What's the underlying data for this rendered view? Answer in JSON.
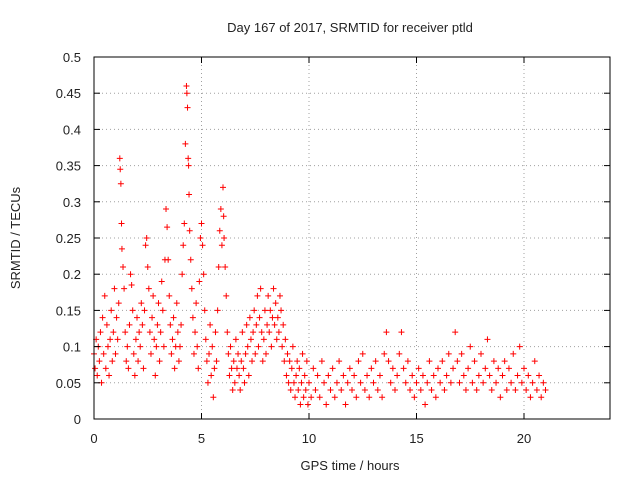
{
  "chart_data": {
    "type": "scatter",
    "title": "Day 167 of 2017, SRMTID for receiver ptld",
    "xlabel": "GPS time / hours",
    "ylabel": "SRMTID / TECUs",
    "xlim": [
      0,
      24
    ],
    "ylim": [
      0,
      0.5
    ],
    "x_ticks": [
      0,
      5,
      10,
      15,
      20
    ],
    "x_tick_labels": [
      "0",
      "5",
      "10",
      "15",
      "20"
    ],
    "y_ticks": [
      0,
      0.05,
      0.1,
      0.15,
      0.2,
      0.25,
      0.3,
      0.35,
      0.4,
      0.45,
      0.5
    ],
    "y_tick_labels": [
      "0",
      "0.05",
      "0.1",
      "0.15",
      "0.2",
      "0.25",
      "0.3",
      "0.35",
      "0.4",
      "0.45",
      "0.5"
    ],
    "grid": true,
    "marker": "plus",
    "color": "#ff0000",
    "series": [
      {
        "points": [
          [
            0.0,
            0.09
          ],
          [
            0.05,
            0.07
          ],
          [
            0.1,
            0.11
          ],
          [
            0.15,
            0.06
          ],
          [
            0.2,
            0.1
          ],
          [
            0.25,
            0.08
          ],
          [
            0.3,
            0.12
          ],
          [
            0.35,
            0.05
          ],
          [
            0.4,
            0.14
          ],
          [
            0.45,
            0.09
          ],
          [
            0.5,
            0.17
          ],
          [
            0.55,
            0.07
          ],
          [
            0.6,
            0.13
          ],
          [
            0.65,
            0.1
          ],
          [
            0.7,
            0.06
          ],
          [
            0.75,
            0.11
          ],
          [
            0.8,
            0.15
          ],
          [
            0.85,
            0.08
          ],
          [
            0.9,
            0.12
          ],
          [
            0.95,
            0.18
          ],
          [
            1.0,
            0.09
          ],
          [
            1.05,
            0.14
          ],
          [
            1.1,
            0.11
          ],
          [
            1.15,
            0.16
          ],
          [
            1.2,
            0.36
          ],
          [
            1.22,
            0.345
          ],
          [
            1.25,
            0.325
          ],
          [
            1.28,
            0.27
          ],
          [
            1.3,
            0.235
          ],
          [
            1.35,
            0.21
          ],
          [
            1.4,
            0.18
          ],
          [
            1.45,
            0.12
          ],
          [
            1.5,
            0.08
          ],
          [
            1.55,
            0.1
          ],
          [
            1.6,
            0.07
          ],
          [
            1.65,
            0.13
          ],
          [
            1.7,
            0.2
          ],
          [
            1.75,
            0.185
          ],
          [
            1.8,
            0.15
          ],
          [
            1.85,
            0.09
          ],
          [
            1.9,
            0.06
          ],
          [
            1.95,
            0.11
          ],
          [
            2.0,
            0.14
          ],
          [
            2.05,
            0.08
          ],
          [
            2.1,
            0.12
          ],
          [
            2.15,
            0.1
          ],
          [
            2.2,
            0.16
          ],
          [
            2.25,
            0.13
          ],
          [
            2.3,
            0.07
          ],
          [
            2.35,
            0.15
          ],
          [
            2.4,
            0.24
          ],
          [
            2.45,
            0.25
          ],
          [
            2.5,
            0.21
          ],
          [
            2.55,
            0.18
          ],
          [
            2.6,
            0.12
          ],
          [
            2.65,
            0.09
          ],
          [
            2.7,
            0.14
          ],
          [
            2.75,
            0.17
          ],
          [
            2.8,
            0.11
          ],
          [
            2.85,
            0.06
          ],
          [
            2.9,
            0.1
          ],
          [
            2.95,
            0.13
          ],
          [
            3.0,
            0.16
          ],
          [
            3.05,
            0.08
          ],
          [
            3.1,
            0.12
          ],
          [
            3.15,
            0.19
          ],
          [
            3.2,
            0.15
          ],
          [
            3.25,
            0.1
          ],
          [
            3.3,
            0.22
          ],
          [
            3.35,
            0.29
          ],
          [
            3.4,
            0.265
          ],
          [
            3.45,
            0.22
          ],
          [
            3.5,
            0.17
          ],
          [
            3.55,
            0.13
          ],
          [
            3.6,
            0.09
          ],
          [
            3.65,
            0.11
          ],
          [
            3.7,
            0.14
          ],
          [
            3.75,
            0.07
          ],
          [
            3.8,
            0.1
          ],
          [
            3.85,
            0.16
          ],
          [
            3.9,
            0.12
          ],
          [
            3.95,
            0.08
          ],
          [
            4.0,
            0.1
          ],
          [
            4.05,
            0.13
          ],
          [
            4.1,
            0.2
          ],
          [
            4.15,
            0.24
          ],
          [
            4.2,
            0.27
          ],
          [
            4.25,
            0.38
          ],
          [
            4.3,
            0.46
          ],
          [
            4.32,
            0.45
          ],
          [
            4.35,
            0.43
          ],
          [
            4.38,
            0.36
          ],
          [
            4.4,
            0.35
          ],
          [
            4.42,
            0.31
          ],
          [
            4.45,
            0.26
          ],
          [
            4.5,
            0.22
          ],
          [
            4.55,
            0.18
          ],
          [
            4.6,
            0.14
          ],
          [
            4.65,
            0.09
          ],
          [
            4.7,
            0.12
          ],
          [
            4.75,
            0.16
          ],
          [
            4.8,
            0.1
          ],
          [
            4.85,
            0.07
          ],
          [
            4.9,
            0.19
          ],
          [
            4.95,
            0.25
          ],
          [
            5.0,
            0.27
          ],
          [
            5.05,
            0.24
          ],
          [
            5.1,
            0.2
          ],
          [
            5.15,
            0.15
          ],
          [
            5.2,
            0.11
          ],
          [
            5.25,
            0.08
          ],
          [
            5.3,
            0.05
          ],
          [
            5.35,
            0.09
          ],
          [
            5.4,
            0.13
          ],
          [
            5.45,
            0.06
          ],
          [
            5.5,
            0.1
          ],
          [
            5.55,
            0.03
          ],
          [
            5.6,
            0.07
          ],
          [
            5.65,
            0.12
          ],
          [
            5.7,
            0.08
          ],
          [
            5.75,
            0.15
          ],
          [
            5.8,
            0.21
          ],
          [
            5.85,
            0.26
          ],
          [
            5.9,
            0.29
          ],
          [
            5.95,
            0.24
          ],
          [
            6.0,
            0.32
          ],
          [
            6.03,
            0.28
          ],
          [
            6.05,
            0.25
          ],
          [
            6.1,
            0.21
          ],
          [
            6.15,
            0.17
          ],
          [
            6.2,
            0.12
          ],
          [
            6.25,
            0.09
          ],
          [
            6.3,
            0.06
          ],
          [
            6.35,
            0.1
          ],
          [
            6.4,
            0.07
          ],
          [
            6.45,
            0.04
          ],
          [
            6.5,
            0.08
          ],
          [
            6.55,
            0.05
          ],
          [
            6.6,
            0.11
          ],
          [
            6.65,
            0.07
          ],
          [
            6.7,
            0.09
          ],
          [
            6.75,
            0.06
          ],
          [
            6.8,
            0.04
          ],
          [
            6.85,
            0.08
          ],
          [
            6.9,
            0.12
          ],
          [
            6.95,
            0.07
          ],
          [
            7.0,
            0.05
          ],
          [
            7.05,
            0.09
          ],
          [
            7.1,
            0.13
          ],
          [
            7.15,
            0.1
          ],
          [
            7.2,
            0.06
          ],
          [
            7.25,
            0.14
          ],
          [
            7.3,
            0.11
          ],
          [
            7.35,
            0.08
          ],
          [
            7.4,
            0.12
          ],
          [
            7.45,
            0.15
          ],
          [
            7.5,
            0.09
          ],
          [
            7.55,
            0.13
          ],
          [
            7.6,
            0.17
          ],
          [
            7.65,
            0.1
          ],
          [
            7.7,
            0.14
          ],
          [
            7.75,
            0.18
          ],
          [
            7.8,
            0.12
          ],
          [
            7.85,
            0.08
          ],
          [
            7.9,
            0.11
          ],
          [
            7.95,
            0.15
          ],
          [
            8.0,
            0.09
          ],
          [
            8.05,
            0.13
          ],
          [
            8.1,
            0.17
          ],
          [
            8.15,
            0.12
          ],
          [
            8.2,
            0.15
          ],
          [
            8.25,
            0.1
          ],
          [
            8.3,
            0.14
          ],
          [
            8.35,
            0.18
          ],
          [
            8.4,
            0.13
          ],
          [
            8.45,
            0.16
          ],
          [
            8.5,
            0.11
          ],
          [
            8.55,
            0.14
          ],
          [
            8.6,
            0.12
          ],
          [
            8.65,
            0.17
          ],
          [
            8.7,
            0.15
          ],
          [
            8.75,
            0.1
          ],
          [
            8.8,
            0.13
          ],
          [
            8.85,
            0.08
          ],
          [
            8.9,
            0.11
          ],
          [
            8.95,
            0.06
          ],
          [
            9.0,
            0.09
          ],
          [
            9.05,
            0.05
          ],
          [
            9.1,
            0.08
          ],
          [
            9.15,
            0.04
          ],
          [
            9.2,
            0.07
          ],
          [
            9.25,
            0.1
          ],
          [
            9.3,
            0.05
          ],
          [
            9.35,
            0.03
          ],
          [
            9.4,
            0.06
          ],
          [
            9.45,
            0.08
          ],
          [
            9.5,
            0.04
          ],
          [
            9.55,
            0.07
          ],
          [
            9.6,
            0.02
          ],
          [
            9.65,
            0.05
          ],
          [
            9.7,
            0.09
          ],
          [
            9.75,
            0.03
          ],
          [
            9.8,
            0.06
          ],
          [
            9.85,
            0.04
          ],
          [
            9.9,
            0.08
          ],
          [
            9.95,
            0.02
          ],
          [
            10.0,
            0.05
          ],
          [
            10.1,
            0.03
          ],
          [
            10.2,
            0.07
          ],
          [
            10.3,
            0.04
          ],
          [
            10.4,
            0.06
          ],
          [
            10.5,
            0.03
          ],
          [
            10.6,
            0.08
          ],
          [
            10.7,
            0.05
          ],
          [
            10.8,
            0.02
          ],
          [
            10.9,
            0.06
          ],
          [
            11.0,
            0.04
          ],
          [
            11.1,
            0.07
          ],
          [
            11.2,
            0.03
          ],
          [
            11.3,
            0.05
          ],
          [
            11.4,
            0.08
          ],
          [
            11.5,
            0.04
          ],
          [
            11.6,
            0.06
          ],
          [
            11.7,
            0.02
          ],
          [
            11.8,
            0.05
          ],
          [
            11.9,
            0.07
          ],
          [
            12.0,
            0.04
          ],
          [
            12.1,
            0.06
          ],
          [
            12.2,
            0.03
          ],
          [
            12.3,
            0.08
          ],
          [
            12.4,
            0.05
          ],
          [
            12.5,
            0.09
          ],
          [
            12.6,
            0.04
          ],
          [
            12.7,
            0.06
          ],
          [
            12.8,
            0.03
          ],
          [
            12.9,
            0.07
          ],
          [
            13.0,
            0.05
          ],
          [
            13.1,
            0.08
          ],
          [
            13.2,
            0.04
          ],
          [
            13.3,
            0.06
          ],
          [
            13.4,
            0.03
          ],
          [
            13.5,
            0.09
          ],
          [
            13.6,
            0.12
          ],
          [
            13.7,
            0.08
          ],
          [
            13.8,
            0.05
          ],
          [
            13.9,
            0.07
          ],
          [
            14.0,
            0.04
          ],
          [
            14.1,
            0.06
          ],
          [
            14.2,
            0.09
          ],
          [
            14.3,
            0.12
          ],
          [
            14.4,
            0.07
          ],
          [
            14.5,
            0.05
          ],
          [
            14.6,
            0.08
          ],
          [
            14.7,
            0.04
          ],
          [
            14.8,
            0.06
          ],
          [
            14.9,
            0.03
          ],
          [
            15.0,
            0.05
          ],
          [
            15.1,
            0.07
          ],
          [
            15.2,
            0.04
          ],
          [
            15.3,
            0.06
          ],
          [
            15.4,
            0.02
          ],
          [
            15.5,
            0.05
          ],
          [
            15.6,
            0.08
          ],
          [
            15.7,
            0.04
          ],
          [
            15.8,
            0.06
          ],
          [
            15.9,
            0.03
          ],
          [
            16.0,
            0.07
          ],
          [
            16.1,
            0.05
          ],
          [
            16.2,
            0.08
          ],
          [
            16.3,
            0.04
          ],
          [
            16.4,
            0.06
          ],
          [
            16.5,
            0.09
          ],
          [
            16.6,
            0.05
          ],
          [
            16.7,
            0.07
          ],
          [
            16.8,
            0.12
          ],
          [
            16.9,
            0.08
          ],
          [
            17.0,
            0.05
          ],
          [
            17.1,
            0.09
          ],
          [
            17.2,
            0.06
          ],
          [
            17.3,
            0.04
          ],
          [
            17.4,
            0.07
          ],
          [
            17.5,
            0.1
          ],
          [
            17.6,
            0.05
          ],
          [
            17.7,
            0.08
          ],
          [
            17.8,
            0.04
          ],
          [
            17.9,
            0.06
          ],
          [
            18.0,
            0.09
          ],
          [
            18.1,
            0.05
          ],
          [
            18.2,
            0.07
          ],
          [
            18.3,
            0.11
          ],
          [
            18.4,
            0.06
          ],
          [
            18.5,
            0.04
          ],
          [
            18.6,
            0.08
          ],
          [
            18.7,
            0.05
          ],
          [
            18.8,
            0.07
          ],
          [
            18.9,
            0.03
          ],
          [
            19.0,
            0.06
          ],
          [
            19.1,
            0.08
          ],
          [
            19.2,
            0.04
          ],
          [
            19.3,
            0.07
          ],
          [
            19.4,
            0.05
          ],
          [
            19.5,
            0.09
          ],
          [
            19.6,
            0.04
          ],
          [
            19.7,
            0.06
          ],
          [
            19.8,
            0.1
          ],
          [
            19.9,
            0.05
          ],
          [
            20.0,
            0.07
          ],
          [
            20.1,
            0.04
          ],
          [
            20.2,
            0.06
          ],
          [
            20.3,
            0.03
          ],
          [
            20.4,
            0.05
          ],
          [
            20.5,
            0.08
          ],
          [
            20.6,
            0.04
          ],
          [
            20.7,
            0.06
          ],
          [
            20.8,
            0.03
          ],
          [
            20.9,
            0.05
          ],
          [
            21.0,
            0.04
          ]
        ]
      }
    ]
  }
}
